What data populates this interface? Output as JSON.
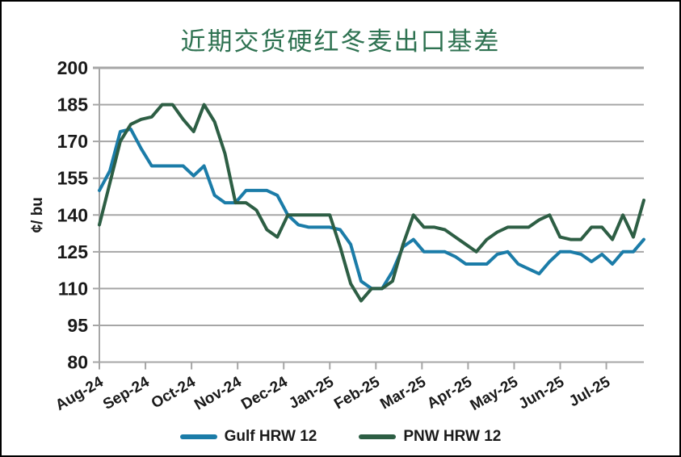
{
  "frame": {
    "background": "#FFFFFF",
    "border_color": "#000000"
  },
  "chart_data": {
    "type": "line",
    "title": "近期交货硬红冬麦出口基差",
    "title_color": "#2E7251",
    "ylabel": "¢/ bu",
    "ylim": [
      80,
      200
    ],
    "yticks": [
      80,
      95,
      110,
      125,
      140,
      155,
      170,
      185,
      200
    ],
    "x_tick_labels": [
      "Aug-24",
      "Sep-24",
      "Oct-24",
      "Nov-24",
      "Dec-24",
      "Jan-25",
      "Feb-25",
      "Mar-25",
      "Apr-25",
      "May-25",
      "Jun-25",
      "Jul-25"
    ],
    "grid": true,
    "grid_color": "#A6A6A6",
    "axis_text_color": "#1A1A1A",
    "legend_position": "bottom",
    "series": [
      {
        "name": "Gulf HRW 12",
        "color": "#1B7CA8",
        "values": [
          150,
          158,
          174,
          175,
          167,
          160,
          160,
          160,
          160,
          156,
          160,
          148,
          145,
          145,
          150,
          150,
          150,
          148,
          140,
          136,
          135,
          135,
          135,
          134,
          128,
          113,
          110,
          110,
          117,
          127,
          130,
          125,
          125,
          125,
          123,
          120,
          120,
          120,
          124,
          125,
          120,
          118,
          116,
          121,
          125,
          125,
          124,
          121,
          124,
          120,
          125,
          125,
          130
        ]
      },
      {
        "name": "PNW HRW 12",
        "color": "#2D5E44",
        "values": [
          136,
          153,
          170,
          177,
          179,
          180,
          185,
          185,
          179,
          174,
          185,
          178,
          165,
          145,
          145,
          142,
          134,
          131,
          140,
          140,
          140,
          140,
          140,
          127,
          112,
          105,
          110,
          110,
          113,
          128,
          140,
          135,
          135,
          134,
          131,
          128,
          125,
          130,
          133,
          135,
          135,
          135,
          138,
          140,
          131,
          130,
          130,
          135,
          135,
          130,
          140,
          131,
          146
        ]
      }
    ]
  }
}
